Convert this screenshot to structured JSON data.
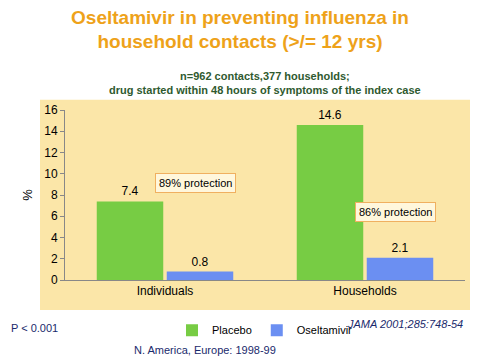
{
  "chart_data": {
    "type": "bar",
    "title": [
      "Oseltamivir in preventing influenza in",
      "household contacts (>/= 12 yrs)"
    ],
    "subtitle": [
      "n=962 contacts,377 households;",
      "drug started within 48 hours of symptoms of the index case"
    ],
    "y_label": "%",
    "categories": [
      "Individuals",
      "Households"
    ],
    "series": [
      {
        "name": "Placebo",
        "color": "#77cc44",
        "values": [
          7.4,
          14.6
        ]
      },
      {
        "name": "Oseltamivir",
        "color": "#6b8ff2",
        "values": [
          0.8,
          2.1
        ]
      }
    ],
    "ylim": [
      0,
      16
    ],
    "yticks": [
      0,
      2,
      4,
      6,
      8,
      10,
      12,
      14,
      16
    ],
    "grid": false,
    "legend": "bottom",
    "data_labels": true,
    "annotations": [
      {
        "text": "89% protection",
        "category": "Individuals",
        "y": 9.1
      },
      {
        "text": "86% protection",
        "category": "Households",
        "y": 6.4
      }
    ],
    "notes": {
      "p_value": "P < 0.001",
      "region": "N. America, Europe: 1998-99",
      "source": "JAMA 2001;285:748-54"
    }
  }
}
